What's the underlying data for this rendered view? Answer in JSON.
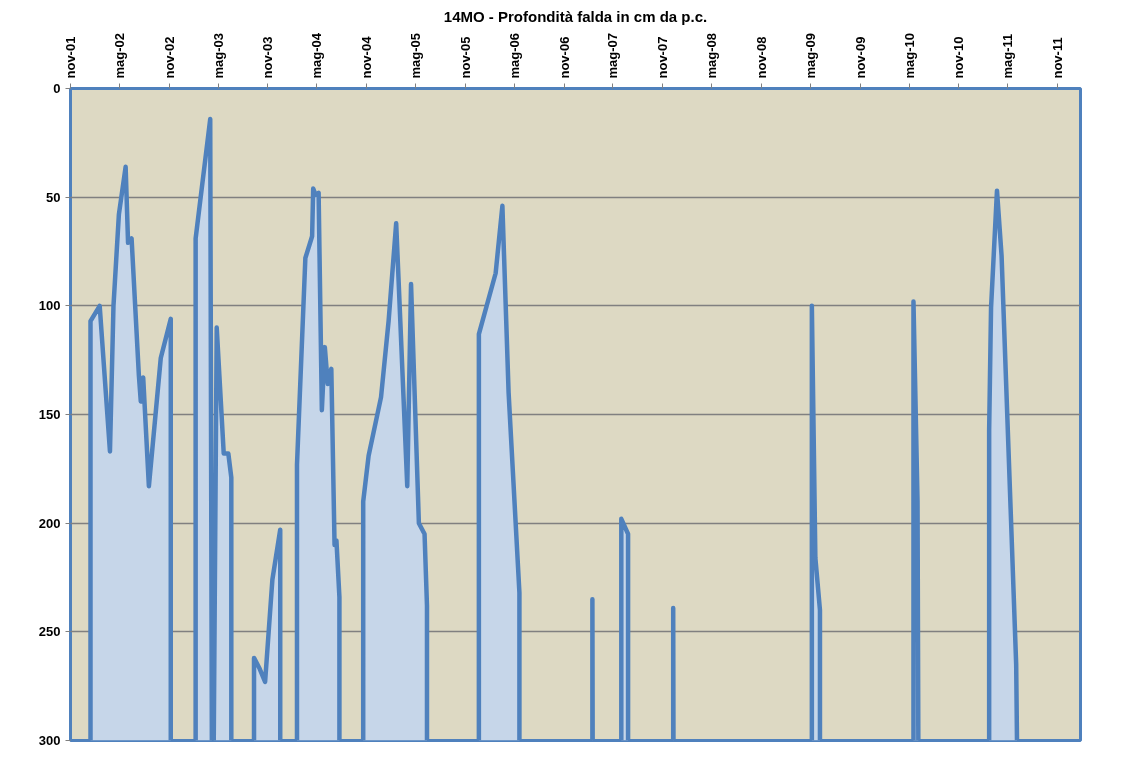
{
  "chart_data": {
    "type": "area",
    "title": "14MO - Profondità falda in cm da p.c.",
    "xlim": [
      "2001-11-01",
      "2012-01-25"
    ],
    "xticks": [
      {
        "value": "2001-11-01",
        "label": "nov-01"
      },
      {
        "value": "2002-05-01",
        "label": "mag-02"
      },
      {
        "value": "2002-11-01",
        "label": "nov-02"
      },
      {
        "value": "2003-05-01",
        "label": "mag-03"
      },
      {
        "value": "2003-11-01",
        "label": "nov-03"
      },
      {
        "value": "2004-05-01",
        "label": "mag-04"
      },
      {
        "value": "2004-11-01",
        "label": "nov-04"
      },
      {
        "value": "2005-05-01",
        "label": "mag-05"
      },
      {
        "value": "2005-11-01",
        "label": "nov-05"
      },
      {
        "value": "2006-05-01",
        "label": "mag-06"
      },
      {
        "value": "2006-11-01",
        "label": "nov-06"
      },
      {
        "value": "2007-05-01",
        "label": "mag-07"
      },
      {
        "value": "2007-11-01",
        "label": "nov-07"
      },
      {
        "value": "2008-05-01",
        "label": "mag-08"
      },
      {
        "value": "2008-11-01",
        "label": "nov-08"
      },
      {
        "value": "2009-05-01",
        "label": "mag-09"
      },
      {
        "value": "2009-11-01",
        "label": "nov-09"
      },
      {
        "value": "2010-05-01",
        "label": "mag-10"
      },
      {
        "value": "2010-11-01",
        "label": "nov-10"
      },
      {
        "value": "2011-05-01",
        "label": "mag-11"
      },
      {
        "value": "2011-11-01",
        "label": "nov-11"
      }
    ],
    "ylim": [
      300,
      0
    ],
    "yticks": [
      0,
      50,
      100,
      150,
      200,
      250,
      300
    ],
    "grid": "y",
    "series": [
      {
        "color": "#4f81bd",
        "x": [
          "2002-01-14",
          "2002-01-14",
          "2002-02-17",
          "2002-03-27",
          "2002-04-09",
          "2002-04-29",
          "2002-05-24",
          "2002-06-02",
          "2002-06-15",
          "2002-07-12",
          "2002-07-19",
          "2002-07-28",
          "2002-08-18",
          "2002-10-01",
          "2002-11-07",
          "2002-11-07",
          null,
          "2003-02-07",
          "2003-02-07",
          "2003-04-02",
          "2003-04-08",
          "2003-04-15",
          "2003-04-26",
          "2003-05-22",
          "2003-06-08",
          "2003-06-19",
          "2003-06-19",
          null,
          "2003-09-11",
          "2003-09-11",
          "2003-10-02",
          "2003-10-22",
          "2003-11-18",
          "2003-12-17",
          "2003-12-17",
          null,
          "2004-02-17",
          "2004-02-17",
          "2004-03-19",
          "2004-04-13",
          "2004-04-17",
          "2004-04-26",
          "2004-05-07",
          "2004-05-19",
          "2004-05-30",
          "2004-06-10",
          "2004-06-23",
          "2004-07-05",
          "2004-07-12",
          "2004-07-23",
          "2004-07-23",
          null,
          "2004-10-19",
          "2004-10-19",
          "2004-11-08",
          "2004-12-24",
          "2005-01-21",
          "2005-02-18",
          "2005-03-31",
          "2005-04-14",
          "2005-05-13",
          "2005-06-03",
          "2005-06-12",
          "2005-06-12",
          null,
          "2005-12-21",
          "2005-12-21",
          "2006-02-21",
          "2006-03-18",
          "2006-04-10",
          "2006-05-20",
          "2006-05-20",
          null,
          "2007-02-14",
          "2007-02-14",
          "2007-02-15",
          null,
          "2007-06-01",
          "2007-06-01",
          "2007-06-26",
          "2007-06-26",
          null,
          "2007-12-10",
          "2007-12-10",
          "2007-12-11",
          null,
          "2009-05-06",
          "2009-05-06",
          "2009-05-19",
          "2009-06-05",
          "2009-06-05",
          null,
          "2010-05-17",
          "2010-05-17",
          "2010-06-01",
          "2010-06-04",
          null,
          "2011-02-21",
          "2011-02-21",
          "2011-02-28",
          "2011-03-22",
          "2011-04-08",
          "2011-06-01",
          "2011-06-04"
        ],
        "values": [
          300,
          107,
          100,
          167,
          100,
          58,
          36,
          71,
          69,
          132,
          144,
          133,
          183,
          124,
          106,
          300,
          null,
          300,
          69,
          14,
          300,
          300,
          110,
          168,
          168,
          179,
          300,
          null,
          300,
          262,
          267,
          273,
          226,
          203,
          300,
          null,
          300,
          173,
          78,
          68,
          46,
          49,
          48,
          148,
          119,
          136,
          129,
          210,
          208,
          234,
          300,
          null,
          300,
          190,
          169,
          142,
          107,
          62,
          183,
          90,
          200,
          205,
          238,
          300,
          null,
          300,
          113,
          85,
          54,
          140,
          232,
          300,
          null,
          300,
          235,
          300,
          null,
          300,
          198,
          205,
          300,
          null,
          300,
          239,
          300,
          null,
          300,
          100,
          216,
          240,
          300,
          null,
          300,
          98,
          190,
          300,
          null,
          300,
          157,
          101,
          47,
          77,
          265,
          300
        ]
      }
    ]
  }
}
